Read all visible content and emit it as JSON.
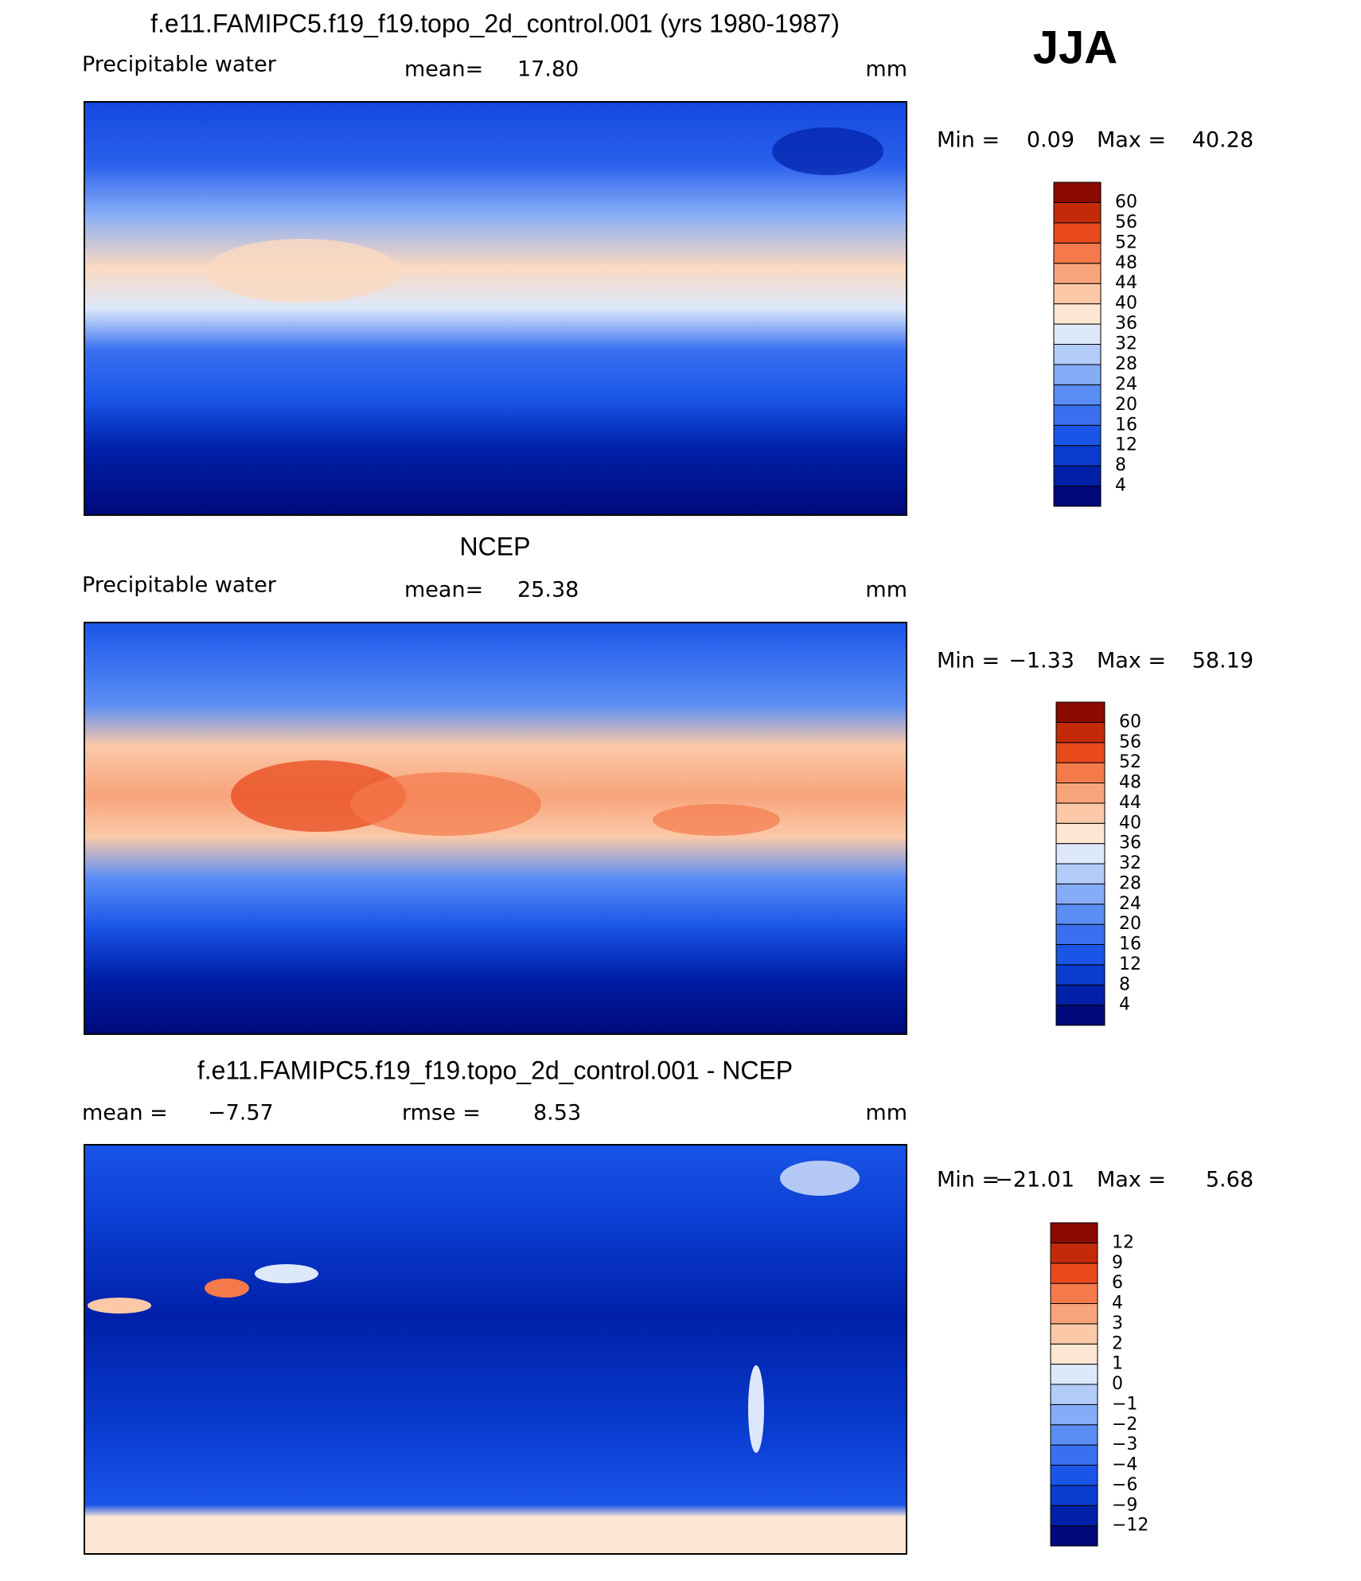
{
  "header": {
    "season": "JJA"
  },
  "colorbar_colors": [
    "#00087a",
    "#0020a8",
    "#0a3cd0",
    "#1a55e8",
    "#3a70f0",
    "#5a8ef5",
    "#86acf7",
    "#b2cbf9",
    "#dde8fb",
    "#fde6d2",
    "#fbc9a8",
    "#f8a47b",
    "#f47a4c",
    "#e84a1e",
    "#c42a0a",
    "#8c0a00"
  ],
  "panels": [
    {
      "title": "f.e11.FAMIPC5.f19_f19.topo_2d_control.001 (yrs 1980-1987)",
      "variable": "Precipitable water",
      "mean_label": "mean=",
      "mean": "17.80",
      "units": "mm",
      "min_label": "Min =",
      "min": "0.09",
      "max_label": "Max =",
      "max": "40.28",
      "levels": [
        4,
        8,
        12,
        16,
        20,
        24,
        28,
        32,
        36,
        40,
        44,
        48,
        52,
        56,
        60
      ]
    },
    {
      "title": "NCEP",
      "variable": "Precipitable water",
      "mean_label": "mean=",
      "mean": "25.38",
      "units": "mm",
      "min_label": "Min =",
      "min": "−1.33",
      "max_label": "Max =",
      "max": "58.19",
      "levels": [
        4,
        8,
        12,
        16,
        20,
        24,
        28,
        32,
        36,
        40,
        44,
        48,
        52,
        56,
        60
      ]
    },
    {
      "title": "f.e11.FAMIPC5.f19_f19.topo_2d_control.001 - NCEP",
      "mean_label": "mean =",
      "mean": "−7.57",
      "rmse_label": "rmse =",
      "rmse": "8.53",
      "units": "mm",
      "min_label": "Min =",
      "min": "−21.01",
      "max_label": "Max =",
      "max": "5.68",
      "levels": [
        "−12",
        "−9",
        "−6",
        "−4",
        "−3",
        "−2",
        "−1",
        "0",
        "1",
        "2",
        "3",
        "4",
        "6",
        "9",
        "12"
      ]
    }
  ]
}
